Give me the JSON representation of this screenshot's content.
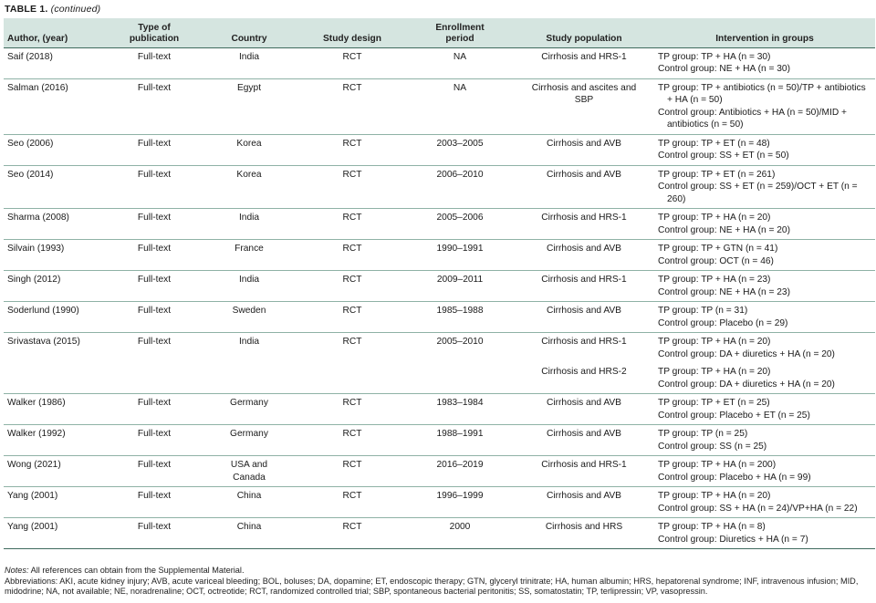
{
  "caption": {
    "label": "TABLE 1.",
    "continued": "(continued)"
  },
  "headers": {
    "author": "Author, (year)",
    "pubtype": [
      "Type of",
      "publication"
    ],
    "country": "Country",
    "design": "Study design",
    "enroll": [
      "Enrollment",
      "period"
    ],
    "population": "Study population",
    "intervention": "Intervention in groups"
  },
  "rows": [
    {
      "author": "Saif (2018)",
      "pubtype": "Full-text",
      "country": [
        "India"
      ],
      "design": "RCT",
      "enroll": "NA",
      "population": [
        "Cirrhosis and HRS-1"
      ],
      "intervention": [
        "TP group: TP + HA (n = 30)",
        "Control group: NE + HA (n = 30)"
      ]
    },
    {
      "author": "Salman (2016)",
      "pubtype": "Full-text",
      "country": [
        "Egypt"
      ],
      "design": "RCT",
      "enroll": "NA",
      "population": [
        "Cirrhosis and ascites and",
        "SBP"
      ],
      "intervention": [
        "TP group: TP + antibiotics (n = 50)/TP + antibiotics + HA (n = 50)",
        "Control group: Antibiotics + HA (n = 50)/MID + antibiotics (n = 50)"
      ]
    },
    {
      "author": "Seo (2006)",
      "pubtype": "Full-text",
      "country": [
        "Korea"
      ],
      "design": "RCT",
      "enroll": "2003–2005",
      "population": [
        "Cirrhosis and AVB"
      ],
      "intervention": [
        "TP group: TP + ET (n = 48)",
        "Control group: SS + ET (n = 50)"
      ]
    },
    {
      "author": "Seo (2014)",
      "pubtype": "Full-text",
      "country": [
        "Korea"
      ],
      "design": "RCT",
      "enroll": "2006–2010",
      "population": [
        "Cirrhosis and AVB"
      ],
      "intervention": [
        "TP group: TP + ET (n = 261)",
        "Control group: SS + ET (n = 259)/OCT + ET (n = 260)"
      ]
    },
    {
      "author": "Sharma (2008)",
      "pubtype": "Full-text",
      "country": [
        "India"
      ],
      "design": "RCT",
      "enroll": "2005–2006",
      "population": [
        "Cirrhosis and HRS-1"
      ],
      "intervention": [
        "TP group: TP + HA (n = 20)",
        "Control group: NE + HA (n = 20)"
      ]
    },
    {
      "author": "Silvain (1993)",
      "pubtype": "Full-text",
      "country": [
        "France"
      ],
      "design": "RCT",
      "enroll": "1990–1991",
      "population": [
        "Cirrhosis and AVB"
      ],
      "intervention": [
        "TP group: TP + GTN (n = 41)",
        "Control group: OCT (n = 46)"
      ]
    },
    {
      "author": "Singh (2012)",
      "pubtype": "Full-text",
      "country": [
        "India"
      ],
      "design": "RCT",
      "enroll": "2009–2011",
      "population": [
        "Cirrhosis and HRS-1"
      ],
      "intervention": [
        "TP group: TP + HA (n = 23)",
        "Control group: NE + HA (n = 23)"
      ]
    },
    {
      "author": "Soderlund (1990)",
      "pubtype": "Full-text",
      "country": [
        "Sweden"
      ],
      "design": "RCT",
      "enroll": "1985–1988",
      "population": [
        "Cirrhosis and AVB"
      ],
      "intervention": [
        "TP group: TP (n = 31)",
        "Control group: Placebo (n = 29)"
      ]
    },
    {
      "author": "Srivastava (2015)",
      "pubtype": "Full-text",
      "country": [
        "India"
      ],
      "design": "RCT",
      "enroll": "2005–2010",
      "population": [
        "Cirrhosis and HRS-1"
      ],
      "intervention": [
        "TP group: TP + HA (n = 20)",
        "Control group: DA + diuretics + HA (n = 20)"
      ],
      "sub": true
    },
    {
      "author": "",
      "pubtype": "",
      "country": [
        ""
      ],
      "design": "",
      "enroll": "",
      "population": [
        "Cirrhosis and HRS-2"
      ],
      "intervention": [
        "TP group: TP + HA (n = 20)",
        "Control group: DA + diuretics + HA (n = 20)"
      ]
    },
    {
      "author": "Walker (1986)",
      "pubtype": "Full-text",
      "country": [
        "Germany"
      ],
      "design": "RCT",
      "enroll": "1983–1984",
      "population": [
        "Cirrhosis and AVB"
      ],
      "intervention": [
        "TP group: TP + ET (n = 25)",
        "Control group: Placebo + ET (n = 25)"
      ]
    },
    {
      "author": "Walker (1992)",
      "pubtype": "Full-text",
      "country": [
        "Germany"
      ],
      "design": "RCT",
      "enroll": "1988–1991",
      "population": [
        "Cirrhosis and AVB"
      ],
      "intervention": [
        "TP group: TP (n = 25)",
        "Control group: SS (n = 25)"
      ]
    },
    {
      "author": "Wong (2021)",
      "pubtype": "Full-text",
      "country": [
        "USA and",
        "Canada"
      ],
      "design": "RCT",
      "enroll": "2016–2019",
      "population": [
        "Cirrhosis and HRS-1"
      ],
      "intervention": [
        "TP group: TP + HA (n = 200)",
        "Control group: Placebo + HA (n = 99)"
      ]
    },
    {
      "author": "Yang (2001)",
      "pubtype": "Full-text",
      "country": [
        "China"
      ],
      "design": "RCT",
      "enroll": "1996–1999",
      "population": [
        "Cirrhosis and AVB"
      ],
      "intervention": [
        "TP group: TP + HA (n = 20)",
        "Control group: SS + HA (n = 24)/VP+HA (n = 22)"
      ]
    },
    {
      "author": "Yang (2001)",
      "pubtype": "Full-text",
      "country": [
        "China"
      ],
      "design": "RCT",
      "enroll": "2000",
      "population": [
        "Cirrhosis and HRS"
      ],
      "intervention": [
        "TP group: TP + HA (n = 8)",
        "Control group: Diuretics + HA (n = 7)"
      ]
    }
  ],
  "notes": {
    "label": "Notes:",
    "text": " All references can obtain from the Supplemental Material.",
    "abbreviations": "Abbreviations: AKI, acute kidney injury; AVB, acute variceal bleeding; BOL, boluses; DA, dopamine; ET, endoscopic therapy; GTN, glyceryl trinitrate; HA, human albumin; HRS, hepatorenal syndrome; INF, intravenous infusion; MID, midodrine; NA, not available; NE, noradrenaline; OCT, octreotide; RCT, randomized controlled trial; SBP, spontaneous bacterial peritonitis; SS, somatostatin; TP, terlipressin; VP, vasopressin."
  }
}
